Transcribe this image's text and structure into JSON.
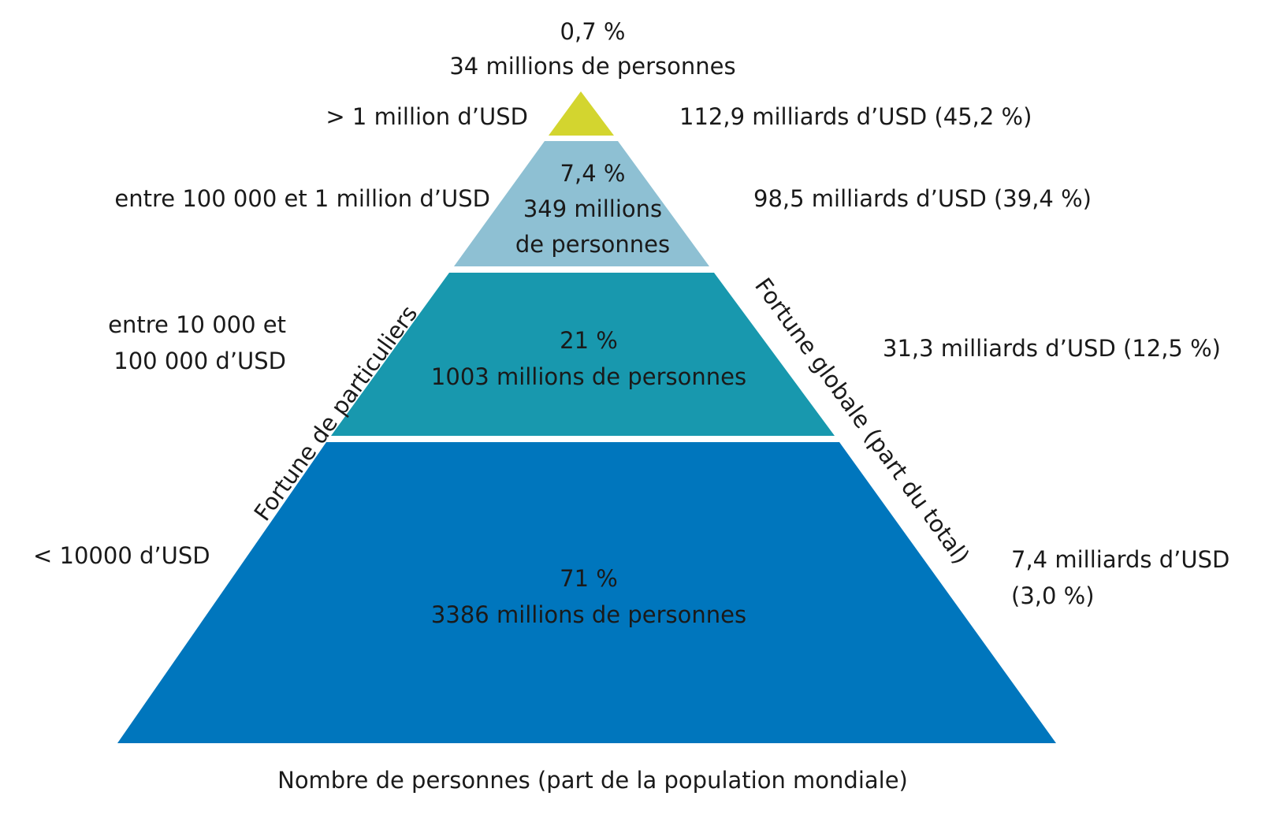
{
  "pyramid": {
    "tiers": [
      {
        "id": "top",
        "share": "0,7 %",
        "people": "34 millions de personnes",
        "people_lines": [
          "34 millions de personnes"
        ],
        "wealth_range": [
          "> 1 million d’USD"
        ],
        "global_wealth": [
          "112,9 milliards d’USD (45,2 %)"
        ],
        "color": "#d3d52f"
      },
      {
        "id": "upper",
        "share": "7,4 %",
        "people": "349 millions de personnes",
        "people_lines": [
          "349 millions",
          "de personnes"
        ],
        "wealth_range": [
          "entre 100 000 et 1 million d’USD"
        ],
        "global_wealth": [
          "98,5 milliards d’USD (39,4 %)"
        ],
        "color": "#8ec0d3"
      },
      {
        "id": "middle",
        "share": "21 %",
        "people": "1003 millions de personnes",
        "people_lines": [
          "1003 millions de personnes"
        ],
        "wealth_range": [
          "entre 10 000 et",
          "100 000 d’USD"
        ],
        "global_wealth": [
          "31,3 milliards d’USD (12,5 %)"
        ],
        "color": "#1898ae"
      },
      {
        "id": "base",
        "share": "71 %",
        "people": "3386 millions de personnes",
        "people_lines": [
          "3386 millions de personnes"
        ],
        "wealth_range": [
          "< 10000 d’USD"
        ],
        "global_wealth": [
          "7,4 milliards d’USD",
          "(3,0 %)"
        ],
        "color": "#0076bd"
      }
    ],
    "left_axis_label": "Fortune de particuliers",
    "right_axis_label": "Fortune globale (part du total)",
    "bottom_axis_label": "Nombre de personnes (part de la population mondiale)"
  }
}
